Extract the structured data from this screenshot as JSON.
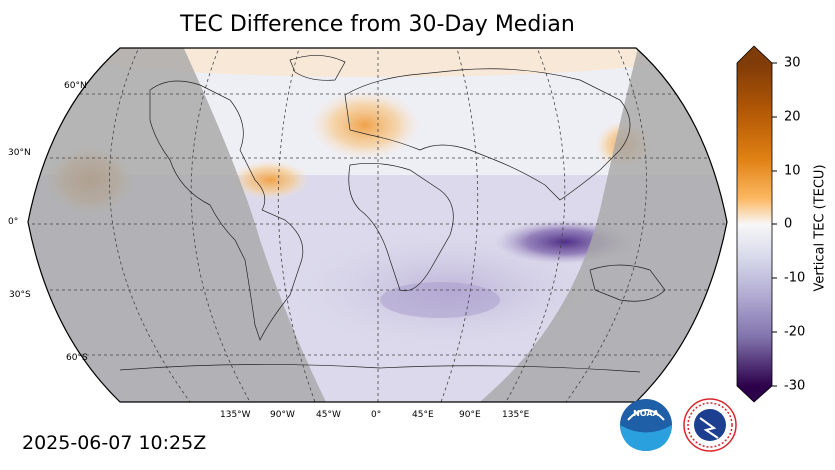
{
  "title": "TEC Difference from 30-Day Median",
  "timestamp": "2025-06-07 10:25Z",
  "colorbar": {
    "label": "Vertical TEC (TECU)",
    "ticks": [
      "30",
      "20",
      "10",
      "0",
      "-10",
      "-20",
      "-30"
    ],
    "range": [
      -30,
      30
    ]
  },
  "lat_labels": [
    "60°N",
    "30°N",
    "0°",
    "30°S",
    "60°S"
  ],
  "lon_labels": [
    "135°W",
    "90°W",
    "45°W",
    "0°",
    "45°E",
    "90°E",
    "135°E"
  ],
  "logos": {
    "noaa": "NOAA",
    "nws": "NATIONAL WEATHER SERVICE"
  },
  "colors": {
    "positive": "#e8922a",
    "negative": "#5a3d8f",
    "night": "#a8a8a8"
  }
}
